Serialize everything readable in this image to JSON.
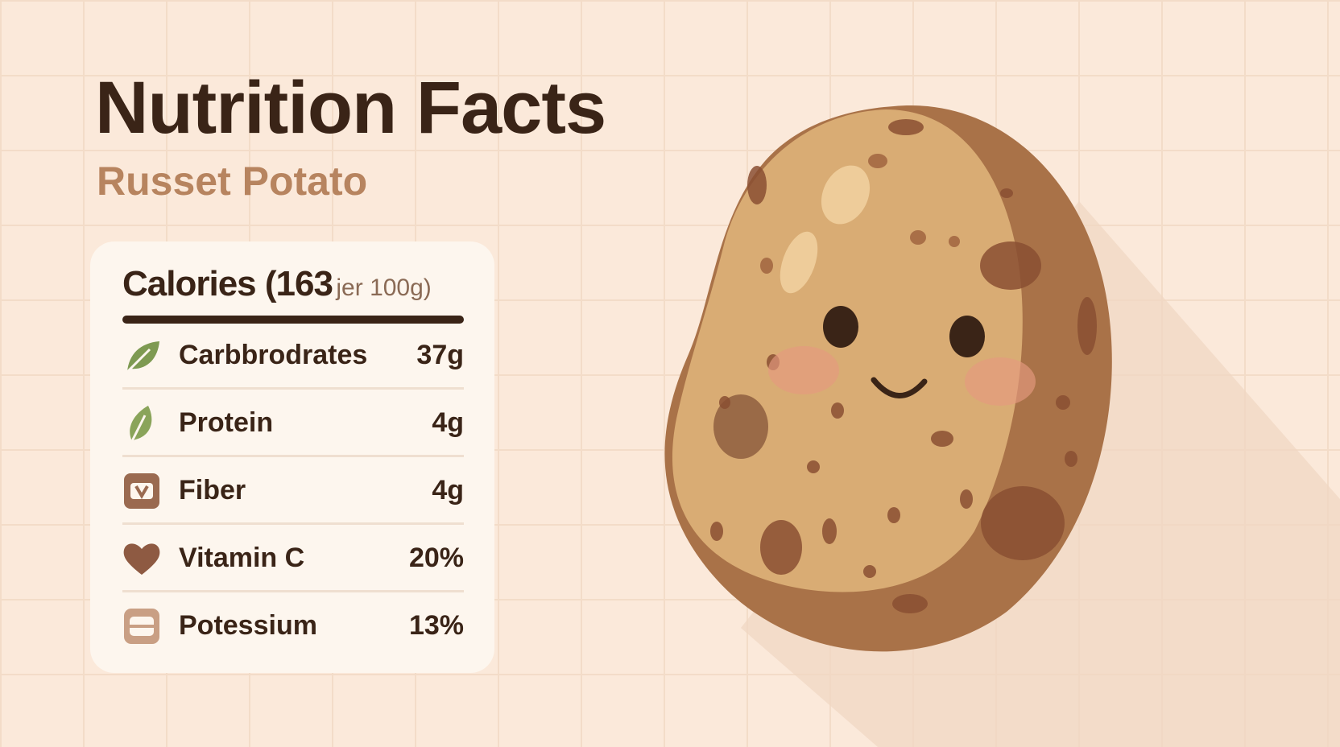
{
  "header": {
    "title": "Nutrition Facts",
    "subtitle": "Russet Potato"
  },
  "card": {
    "calories": "Calories (163",
    "calories_unit": "jer 100g)",
    "rows": [
      {
        "name": "Carbbrodrates",
        "value": "37g"
      },
      {
        "name": "Protein",
        "value": "4g"
      },
      {
        "name": "Fiber",
        "value": "4g"
      },
      {
        "name": "Vitamin C",
        "value": "20%"
      },
      {
        "name": "Potessium",
        "value": "13%"
      }
    ]
  }
}
